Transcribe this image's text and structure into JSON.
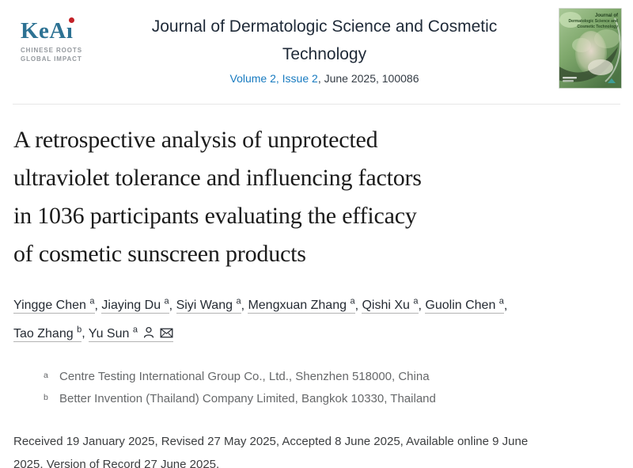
{
  "header": {
    "logo": {
      "brand": "KeAi",
      "brand_prefix": "KeA",
      "brand_i": "ı",
      "tagline_line1": "CHINESE ROOTS",
      "tagline_line2": "GLOBAL IMPACT"
    },
    "journal_title": "Journal of Dermatologic Science and Cosmetic Technology",
    "issue_link": "Volume 2, Issue 2",
    "issue_rest": ", June 2025, 100086",
    "cover": {
      "line1": "Journal of",
      "line2": "Dermatologic Science and",
      "line3": "Cosmetic Technology"
    }
  },
  "article": {
    "title": "A retrospective analysis of unprotected ultraviolet tolerance and influencing factors in 1036 participants evaluating the efficacy of cosmetic sunscreen products",
    "title_lines": [
      "A retrospective analysis of unprotected",
      "ultraviolet tolerance and influencing factors",
      "in 1036 participants evaluating the efficacy",
      "of cosmetic sunscreen products"
    ],
    "authors": [
      {
        "name": "Yingge Chen",
        "sup": "a"
      },
      {
        "name": "Jiaying Du",
        "sup": "a"
      },
      {
        "name": "Siyi Wang",
        "sup": "a"
      },
      {
        "name": "Mengxuan Zhang",
        "sup": "a"
      },
      {
        "name": "Qishi Xu",
        "sup": "a"
      },
      {
        "name": "Guolin Chen",
        "sup": "a",
        "break_after": true
      },
      {
        "name": "Tao Zhang",
        "sup": "b"
      },
      {
        "name": "Yu Sun",
        "sup": "a",
        "corresponding": true
      }
    ],
    "affiliations": [
      {
        "sup": "a",
        "text": "Centre Testing International Group Co., Ltd., Shenzhen 518000, China"
      },
      {
        "sup": "b",
        "text": "Better Invention (Thailand) Company Limited, Bangkok 10330, Thailand"
      }
    ],
    "dates": "Received 19 January 2025, Revised 27 May 2025, Accepted 8 June 2025, Available online 9 June 2025, Version of Record 27 June 2025."
  },
  "ui": {
    "icons": {
      "person": "person-icon",
      "envelope": "envelope-icon"
    },
    "colors": {
      "link_blue": "#187bc0",
      "keai_blue": "#2d7293",
      "keai_red": "#c32127",
      "journal_title": "#1f2a38",
      "article_title": "#1b1b1b",
      "affiliation_gray": "#66686a",
      "cover_green_dark": "#3a5233",
      "cover_green_light": "#cfe3bd"
    }
  }
}
